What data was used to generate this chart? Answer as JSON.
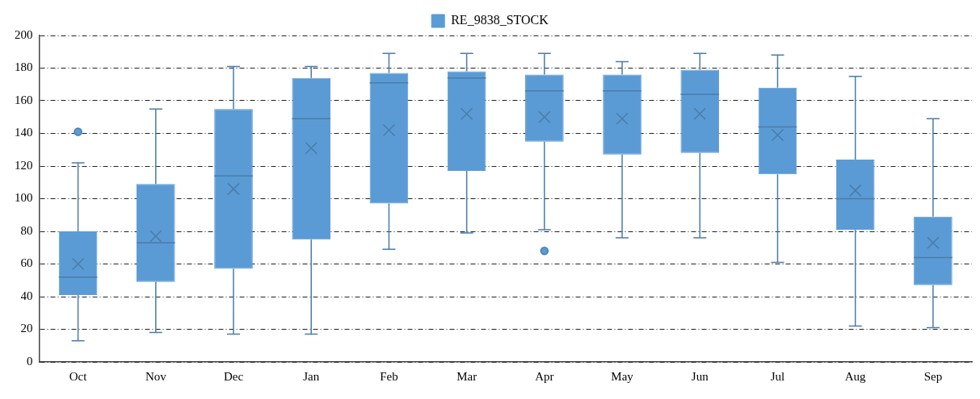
{
  "chart_data": {
    "type": "box",
    "categories": [
      "Oct",
      "Nov",
      "Dec",
      "Jan",
      "Feb",
      "Mar",
      "Apr",
      "May",
      "Jun",
      "Jul",
      "Aug",
      "Sep"
    ],
    "series": [
      {
        "name": "RE_9838_STOCK",
        "color": "#5b9bd5",
        "boxes": [
          {
            "low": 13,
            "q1": 41,
            "median": 52,
            "q3": 80,
            "high": 122,
            "mean": 60,
            "outliers": [
              141
            ]
          },
          {
            "low": 18,
            "q1": 49,
            "median": 73,
            "q3": 109,
            "high": 155,
            "mean": 77
          },
          {
            "low": 17,
            "q1": 57,
            "median": 114,
            "q3": 155,
            "high": 181,
            "mean": 106
          },
          {
            "low": 17,
            "q1": 75,
            "median": 149,
            "q3": 174,
            "high": 181,
            "mean": 131
          },
          {
            "low": 69,
            "q1": 97,
            "median": 171,
            "q3": 177,
            "high": 189,
            "mean": 142
          },
          {
            "low": 79,
            "q1": 117,
            "median": 174,
            "q3": 178,
            "high": 189,
            "mean": 152
          },
          {
            "low": 81,
            "q1": 135,
            "median": 166,
            "q3": 176,
            "high": 189,
            "mean": 150,
            "outliers": [
              68
            ]
          },
          {
            "low": 76,
            "q1": 127,
            "median": 166,
            "q3": 176,
            "high": 184,
            "mean": 149
          },
          {
            "low": 76,
            "q1": 128,
            "median": 164,
            "q3": 179,
            "high": 189,
            "mean": 152
          },
          {
            "low": 61,
            "q1": 115,
            "median": 144,
            "q3": 168,
            "high": 188,
            "mean": 139
          },
          {
            "low": 22,
            "q1": 81,
            "median": 100,
            "q3": 124,
            "high": 175,
            "mean": 105
          },
          {
            "low": 21,
            "q1": 47,
            "median": 64,
            "q3": 89,
            "high": 149,
            "mean": 73
          }
        ]
      }
    ],
    "ylim": [
      0,
      200
    ],
    "yticks": [
      0,
      20,
      40,
      60,
      80,
      100,
      120,
      140,
      160,
      180,
      200
    ],
    "grid": "y",
    "legend": "top"
  }
}
